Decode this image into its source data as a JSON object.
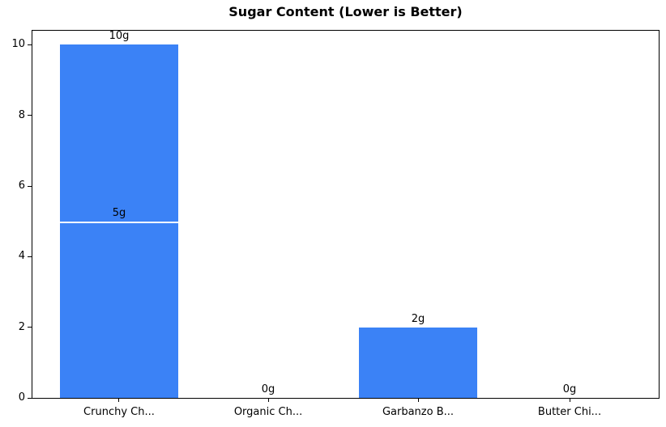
{
  "chart_data": {
    "type": "bar",
    "title": "Sugar Content (Lower is Better)",
    "categories": [
      "Crunchy Ch...",
      "Organic Ch...",
      "Garbanzo B...",
      "Butter Chi..."
    ],
    "values": [
      10,
      0,
      2,
      0
    ],
    "bar_labels": [
      "10g",
      "0g",
      "2g",
      "0g"
    ],
    "overlay_bar": {
      "category_index": 0,
      "value": 5,
      "label": "5g",
      "edge_color": "#ffffff"
    },
    "yticks": [
      "0",
      "2",
      "4",
      "6",
      "8",
      "10"
    ],
    "ytick_values": [
      0,
      2,
      4,
      6,
      8,
      10
    ],
    "ylim": [
      0,
      10.4
    ],
    "xlabel": "",
    "ylabel": "",
    "grid": false,
    "legend_position": "none",
    "bar_color": "#3b82f6",
    "text_color": "#000000",
    "background_color": "#ffffff"
  }
}
